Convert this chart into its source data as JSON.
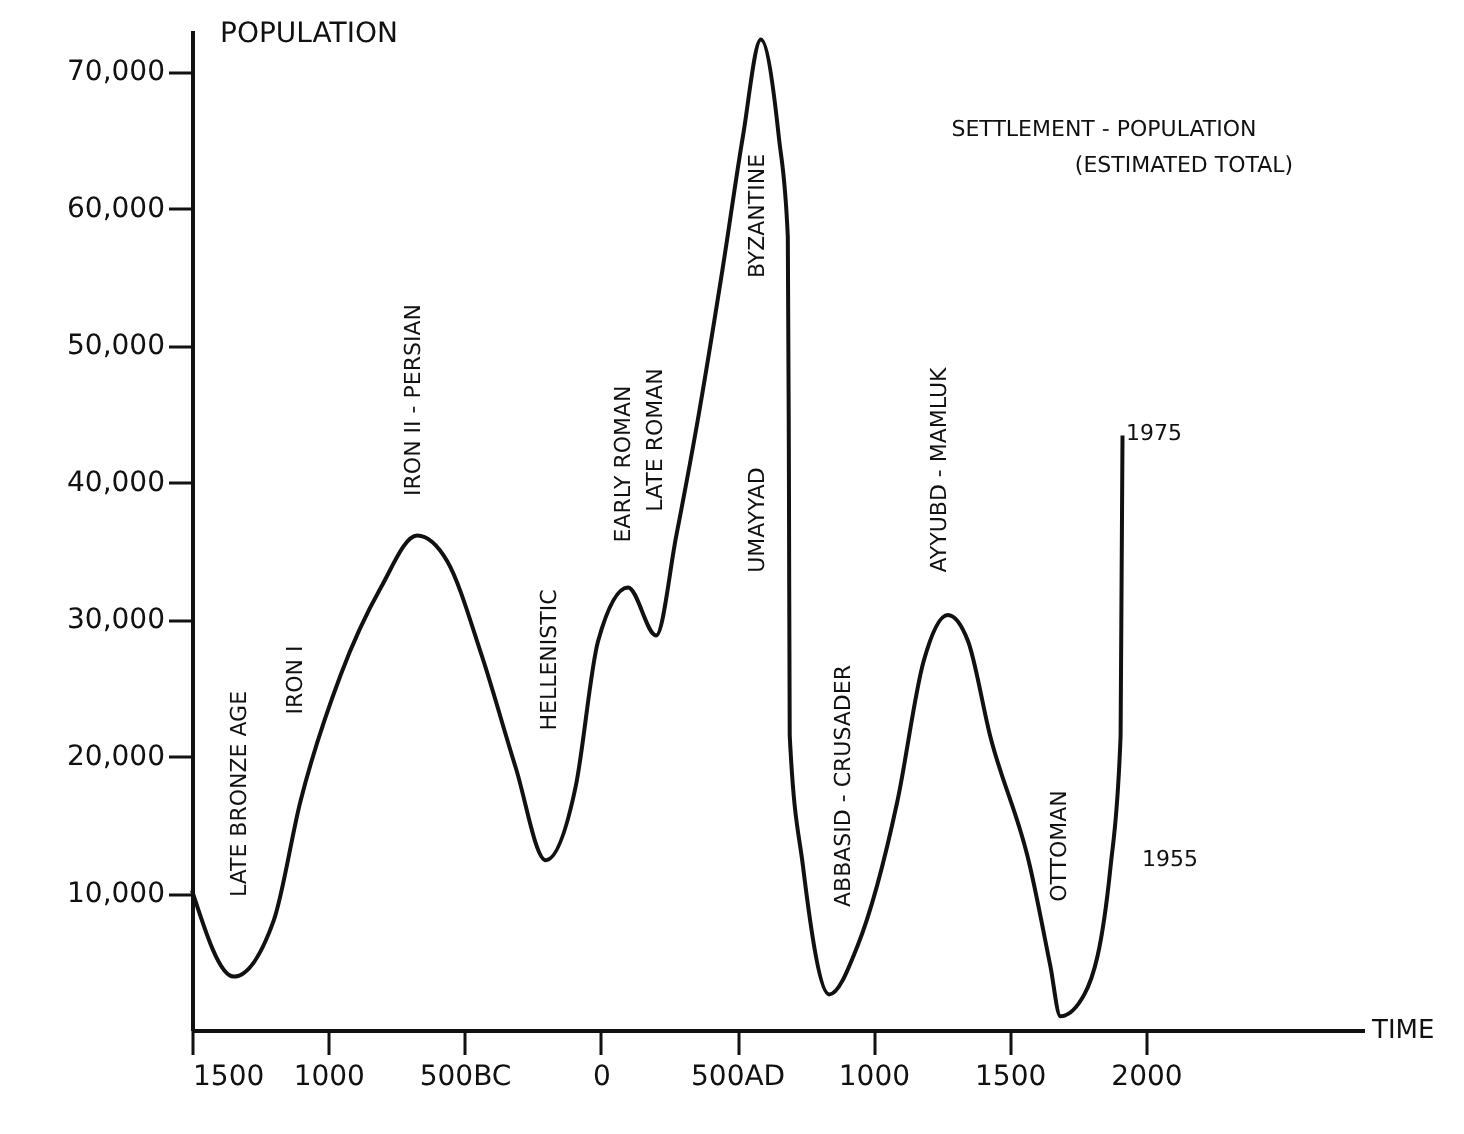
{
  "chart_data": {
    "type": "line",
    "title": "SETTLEMENT - POPULATION",
    "subtitle": "(ESTIMATED TOTAL)",
    "xlabel": "TIME",
    "ylabel": "POPULATION",
    "x": [
      -1500,
      -1347,
      -1200,
      -1102,
      -955,
      -807,
      -674,
      -563,
      -438,
      -313,
      -202,
      -92,
      -10,
      100,
      203,
      277,
      351,
      447,
      521,
      587,
      653,
      686,
      690,
      693,
      742,
      838,
      941,
      1088,
      1184,
      1273,
      1347,
      1428,
      1575,
      1649,
      1686,
      1774,
      1870,
      1907,
      1914
    ],
    "series": [
      {
        "color": "#111111",
        "values": [
          10200,
          3900,
          8000,
          16700,
          25900,
          32300,
          36100,
          34200,
          27400,
          19200,
          12400,
          17800,
          28400,
          32300,
          28800,
          36100,
          44000,
          55600,
          65200,
          72300,
          65200,
          57900,
          41000,
          21500,
          11900,
          2600,
          6100,
          16700,
          26900,
          30300,
          28400,
          21500,
          11900,
          4700,
          1000,
          2600,
          11900,
          21500,
          43400
        ]
      }
    ],
    "xlim": [
      -1500,
      2800
    ],
    "ylim": [
      0,
      73000
    ],
    "xticks": [
      {
        "value": -1500,
        "label": "1500"
      },
      {
        "value": -1000,
        "label": "1000"
      },
      {
        "value": -500,
        "label": "500BC"
      },
      0,
      {
        "value": 500,
        "label": "500AD"
      },
      1000,
      1500,
      2000
    ],
    "yticks": [
      {
        "value": 10000,
        "label": "10,000"
      },
      {
        "value": 20000,
        "label": "20,000"
      },
      {
        "value": 30000,
        "label": "30,000"
      },
      {
        "value": 40000,
        "label": "40,000"
      },
      {
        "value": 50000,
        "label": "50,000"
      },
      {
        "value": 60000,
        "label": "60,000"
      },
      {
        "value": 70000,
        "label": "70,000"
      }
    ],
    "grid": false,
    "marker": "none",
    "line_style": "solid",
    "annotations": [
      "LATE BRONZE AGE",
      "IRON I",
      "IRON II - PERSIAN",
      "HELLENISTIC",
      "EARLY ROMAN",
      "LATE ROMAN",
      "BYZANTINE",
      "UMAYYAD",
      "ABBASID - CRUSADER",
      "AYYUBD - MAMLUK",
      "OTTOMAN",
      "1975",
      "1955"
    ]
  }
}
